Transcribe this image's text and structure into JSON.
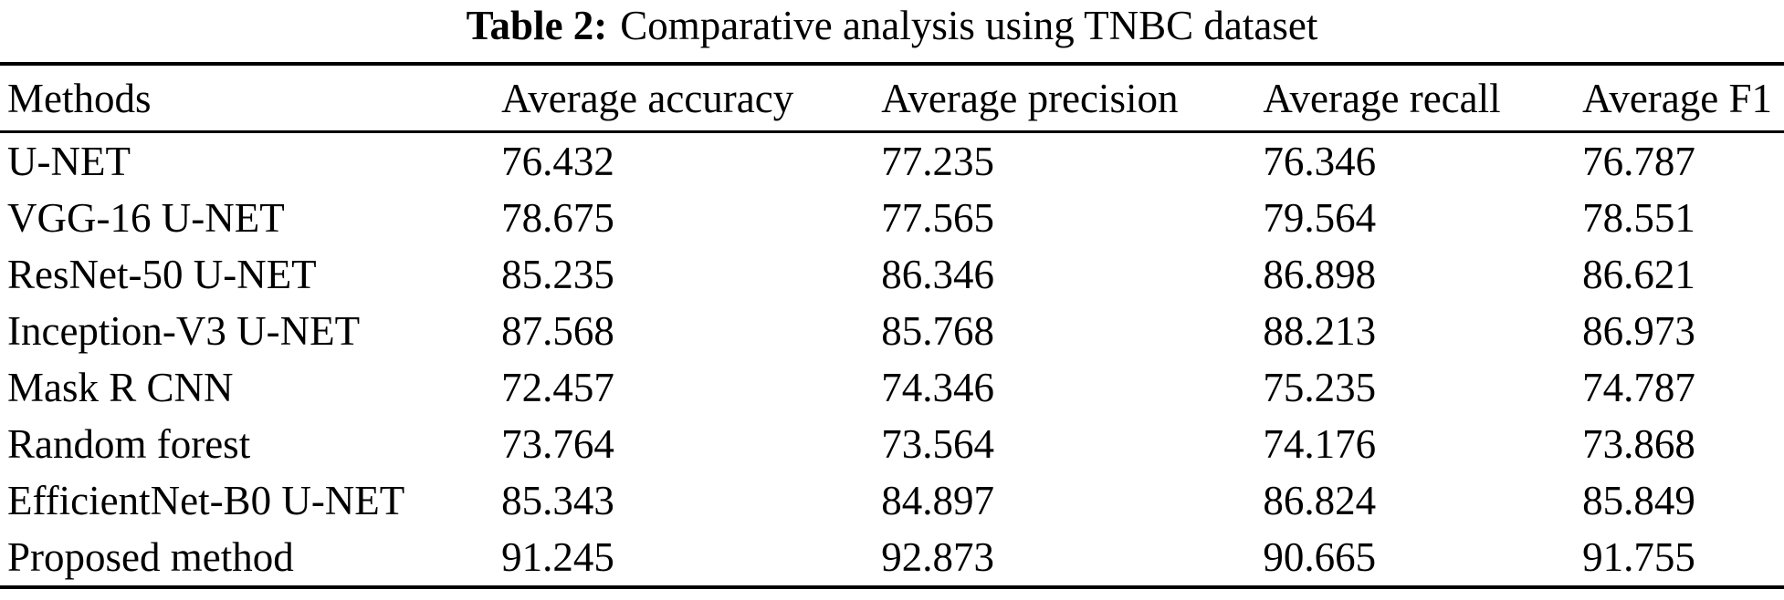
{
  "caption": {
    "label": "Table 2:",
    "text": "Comparative analysis using TNBC dataset"
  },
  "table": {
    "columns": {
      "methods": "Methods",
      "accuracy": "Average accuracy",
      "precision": "Average precision",
      "recall": "Average recall",
      "f1": "Average F1"
    },
    "rows": [
      {
        "method": "U-NET",
        "accuracy": "76.432",
        "precision": "77.235",
        "recall": "76.346",
        "f1": "76.787"
      },
      {
        "method": "VGG-16 U-NET",
        "accuracy": "78.675",
        "precision": "77.565",
        "recall": "79.564",
        "f1": "78.551"
      },
      {
        "method": "ResNet-50 U-NET",
        "accuracy": "85.235",
        "precision": "86.346",
        "recall": "86.898",
        "f1": "86.621"
      },
      {
        "method": "Inception-V3 U-NET",
        "accuracy": "87.568",
        "precision": "85.768",
        "recall": "88.213",
        "f1": "86.973"
      },
      {
        "method": "Mask R CNN",
        "accuracy": "72.457",
        "precision": "74.346",
        "recall": "75.235",
        "f1": "74.787"
      },
      {
        "method": "Random forest",
        "accuracy": "73.764",
        "precision": "73.564",
        "recall": "74.176",
        "f1": "73.868"
      },
      {
        "method": "EfficientNet-B0 U-NET",
        "accuracy": "85.343",
        "precision": "84.897",
        "recall": "86.824",
        "f1": "85.849"
      },
      {
        "method": "Proposed method",
        "accuracy": "91.245",
        "precision": "92.873",
        "recall": "90.665",
        "f1": "91.755"
      }
    ]
  },
  "colors": {
    "text": "#000000",
    "background": "#ffffff",
    "rule": "#000000"
  }
}
